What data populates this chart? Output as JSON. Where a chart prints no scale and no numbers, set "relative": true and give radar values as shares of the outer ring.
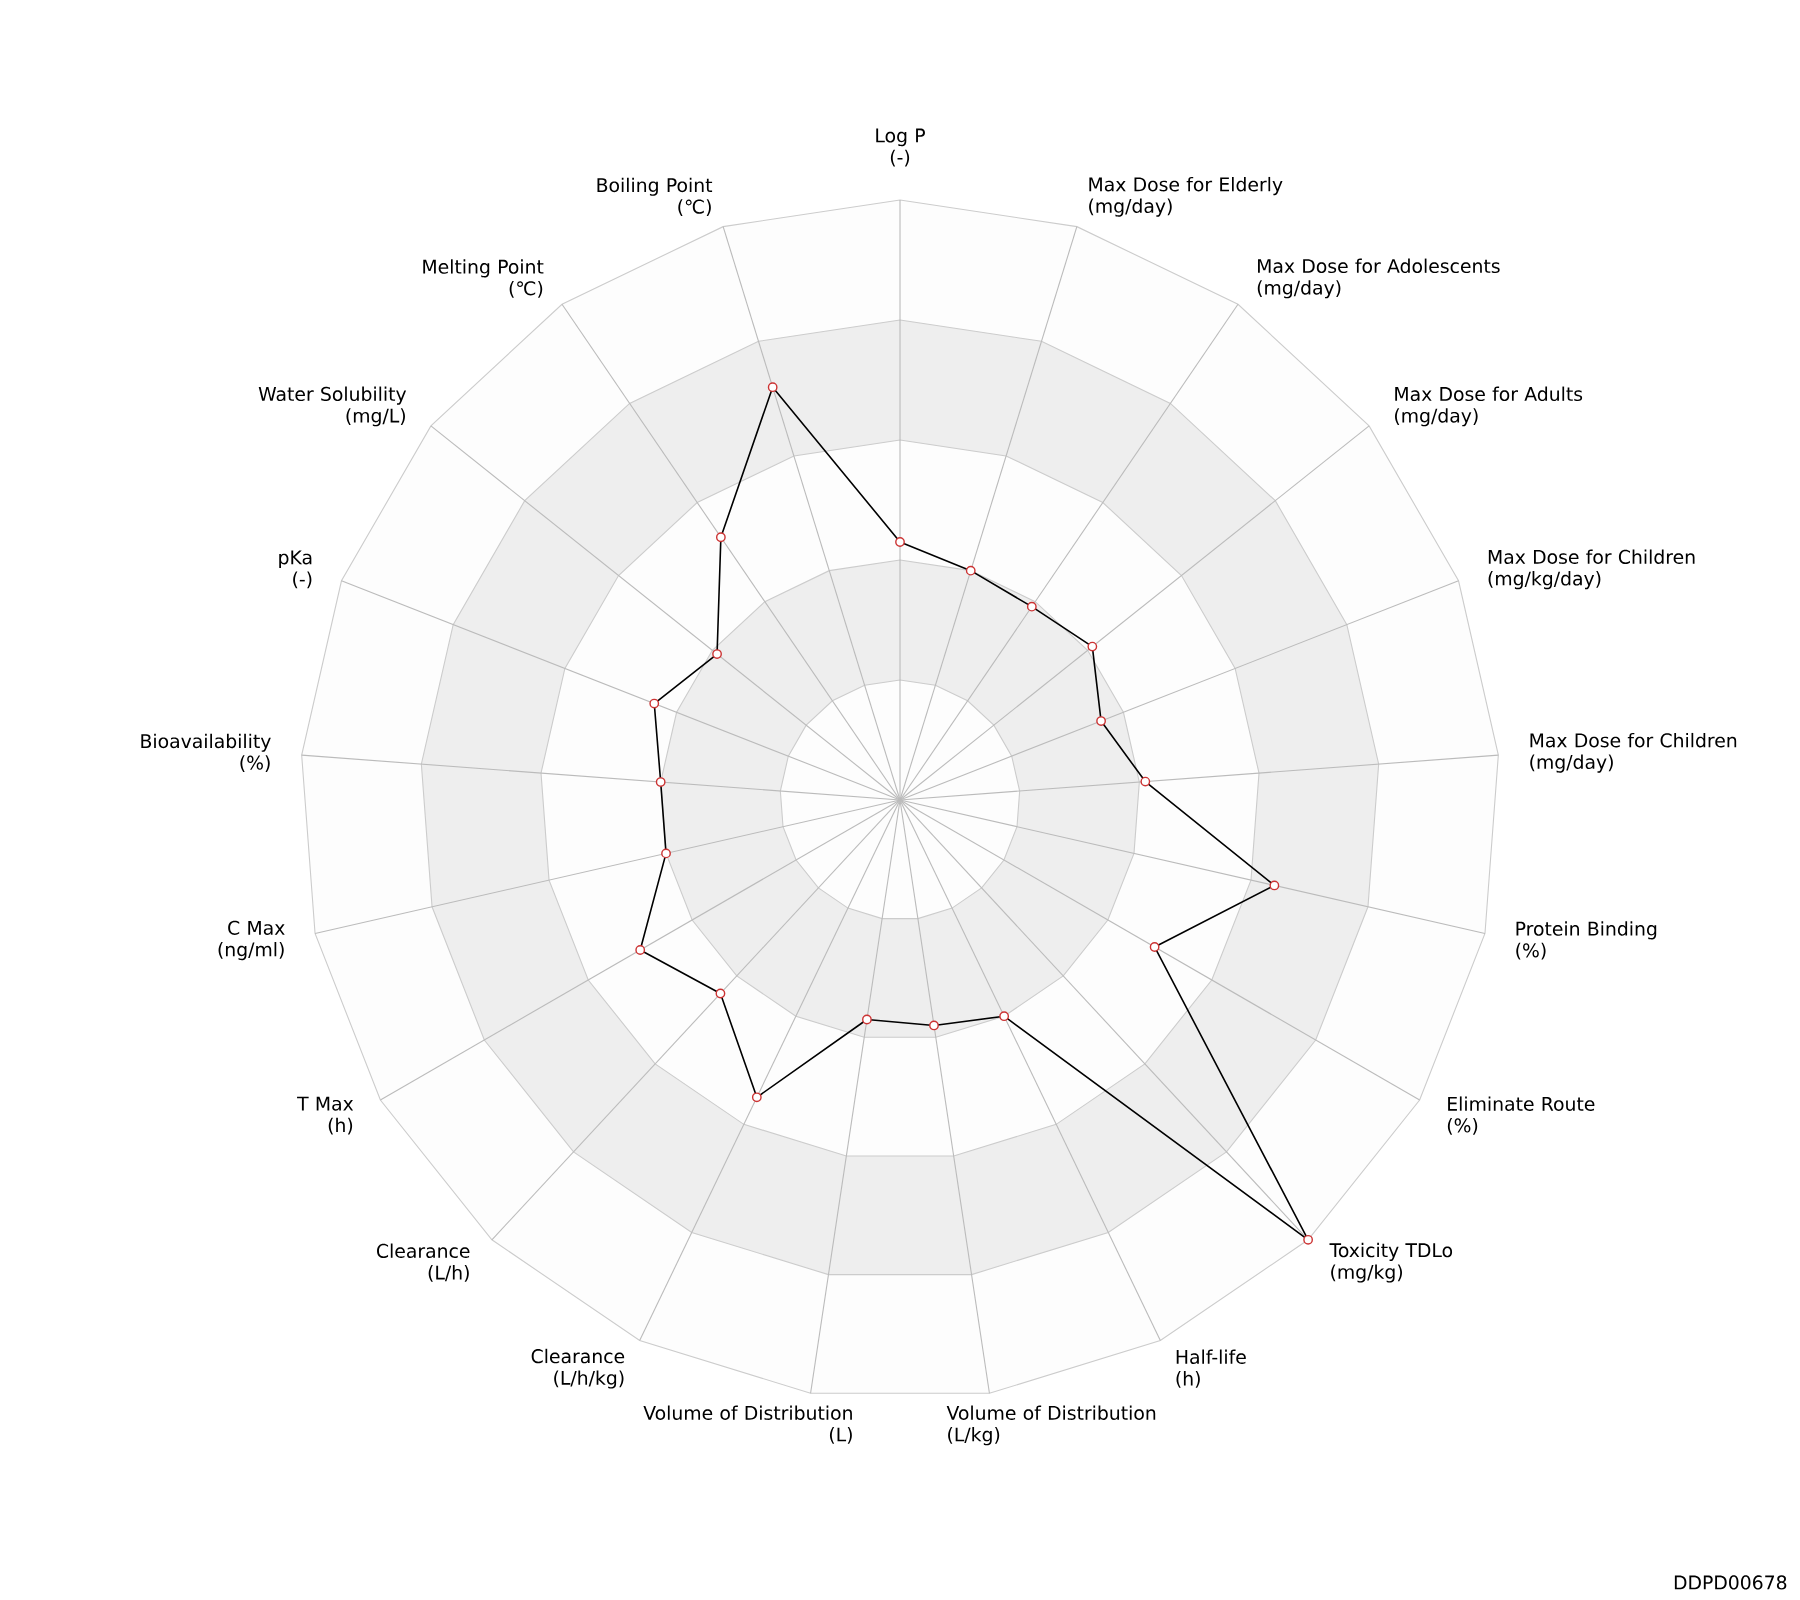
{
  "chart_data": {
    "type": "radar",
    "relative": true,
    "categories": [
      "Log P\n(-)",
      "Max Dose for Elderly\n(mg/day)",
      "Max Dose for Adolescents\n(mg/day)",
      "Max Dose for Adults\n(mg/day)",
      "Max Dose for Children\n(mg/kg/day)",
      "Max Dose for Children\n(mg/day)",
      "Protein Binding\n(%)",
      "Eliminate Route\n(%)",
      "Toxicity TDLo\n(mg/kg)",
      "Half-life\n(h)",
      "Volume of Distribution\n(L/kg)",
      "Volume of Distribution\n(L)",
      "Clearance\n(L/h/kg)",
      "Clearance\n(L/h)",
      "T Max\n(h)",
      "C Max\n(ng/ml)",
      "Bioavailability\n(%)",
      "pKa\n(-)",
      "Water Solubility\n(mg/L)",
      "Melting Point\n(℃)",
      "Boiling Point\n(℃)"
    ],
    "series": [
      {
        "color": "#000000",
        "values": [
          0.43,
          0.4,
          0.39,
          0.41,
          0.36,
          0.41,
          0.64,
          0.49,
          1.0,
          0.4,
          0.38,
          0.37,
          0.55,
          0.44,
          0.5,
          0.4,
          0.4,
          0.44,
          0.39,
          0.53,
          0.72
        ]
      }
    ],
    "grid": true,
    "marker": "circle",
    "line_style": "solid",
    "annotations": [
      "DDPD00678"
    ]
  }
}
